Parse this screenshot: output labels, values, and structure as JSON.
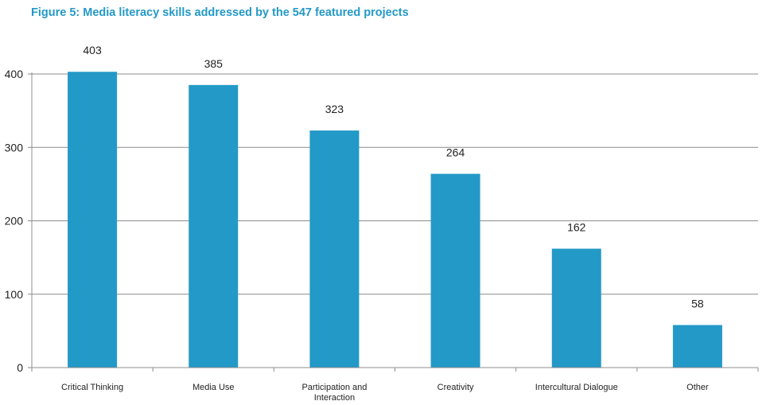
{
  "chart_data": {
    "type": "bar",
    "title": "Figure 5: Media literacy skills addressed by the 547 featured projects",
    "categories": [
      "Critical Thinking",
      "Media Use",
      "Participation and Interaction",
      "Creativity",
      "Intercultural Dialogue",
      "Other"
    ],
    "category_lines": [
      [
        "Critical Thinking"
      ],
      [
        "Media Use"
      ],
      [
        "Participation and",
        "Interaction"
      ],
      [
        "Creativity"
      ],
      [
        "Intercultural Dialogue"
      ],
      [
        "Other"
      ]
    ],
    "values": [
      403,
      385,
      323,
      264,
      162,
      58
    ],
    "value_labels": [
      "403",
      "385",
      "323",
      "264",
      "162",
      "58"
    ],
    "y_ticks": [
      0,
      100,
      200,
      300,
      400
    ],
    "y_tick_labels": [
      "0",
      "100",
      "200",
      "300",
      "400"
    ],
    "ylim": [
      0,
      400
    ],
    "grid": true,
    "legend": "none",
    "colors": {
      "bar": "#2399c7",
      "title": "#2399c7",
      "grid": "#8c8c8c",
      "axis": "#8c8c8c",
      "text": "#222222"
    }
  }
}
